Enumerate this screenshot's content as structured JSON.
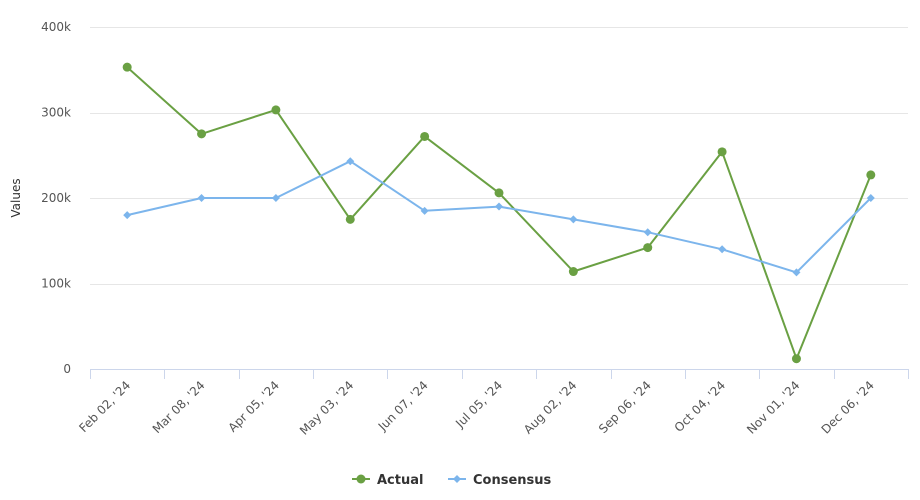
{
  "chart_data": {
    "type": "line",
    "ylabel": "Values",
    "ylim": [
      0,
      400000
    ],
    "y_ticks": [
      {
        "value": 0,
        "label": "0"
      },
      {
        "value": 100000,
        "label": "100k"
      },
      {
        "value": 200000,
        "label": "200k"
      },
      {
        "value": 300000,
        "label": "300k"
      },
      {
        "value": 400000,
        "label": "400k"
      }
    ],
    "categories": [
      "Feb 02, '24",
      "Mar 08, '24",
      "Apr 05, '24",
      "May 03, '24",
      "Jun 07, '24",
      "Jul 05, '24",
      "Aug 02, '24",
      "Sep 06, '24",
      "Oct 04, '24",
      "Nov 01, '24",
      "Dec 06, '24"
    ],
    "series": [
      {
        "name": "Actual",
        "color": "#6aa043",
        "marker": "circle",
        "values": [
          353000,
          275000,
          303000,
          175000,
          272000,
          206000,
          114000,
          142000,
          254000,
          12000,
          227000
        ]
      },
      {
        "name": "Consensus",
        "color": "#7cb5ec",
        "marker": "diamond",
        "values": [
          180000,
          200000,
          200000,
          243000,
          185000,
          190000,
          175000,
          160000,
          140000,
          113000,
          200000
        ]
      }
    ],
    "grid": true,
    "legend_position": "bottom-center"
  }
}
